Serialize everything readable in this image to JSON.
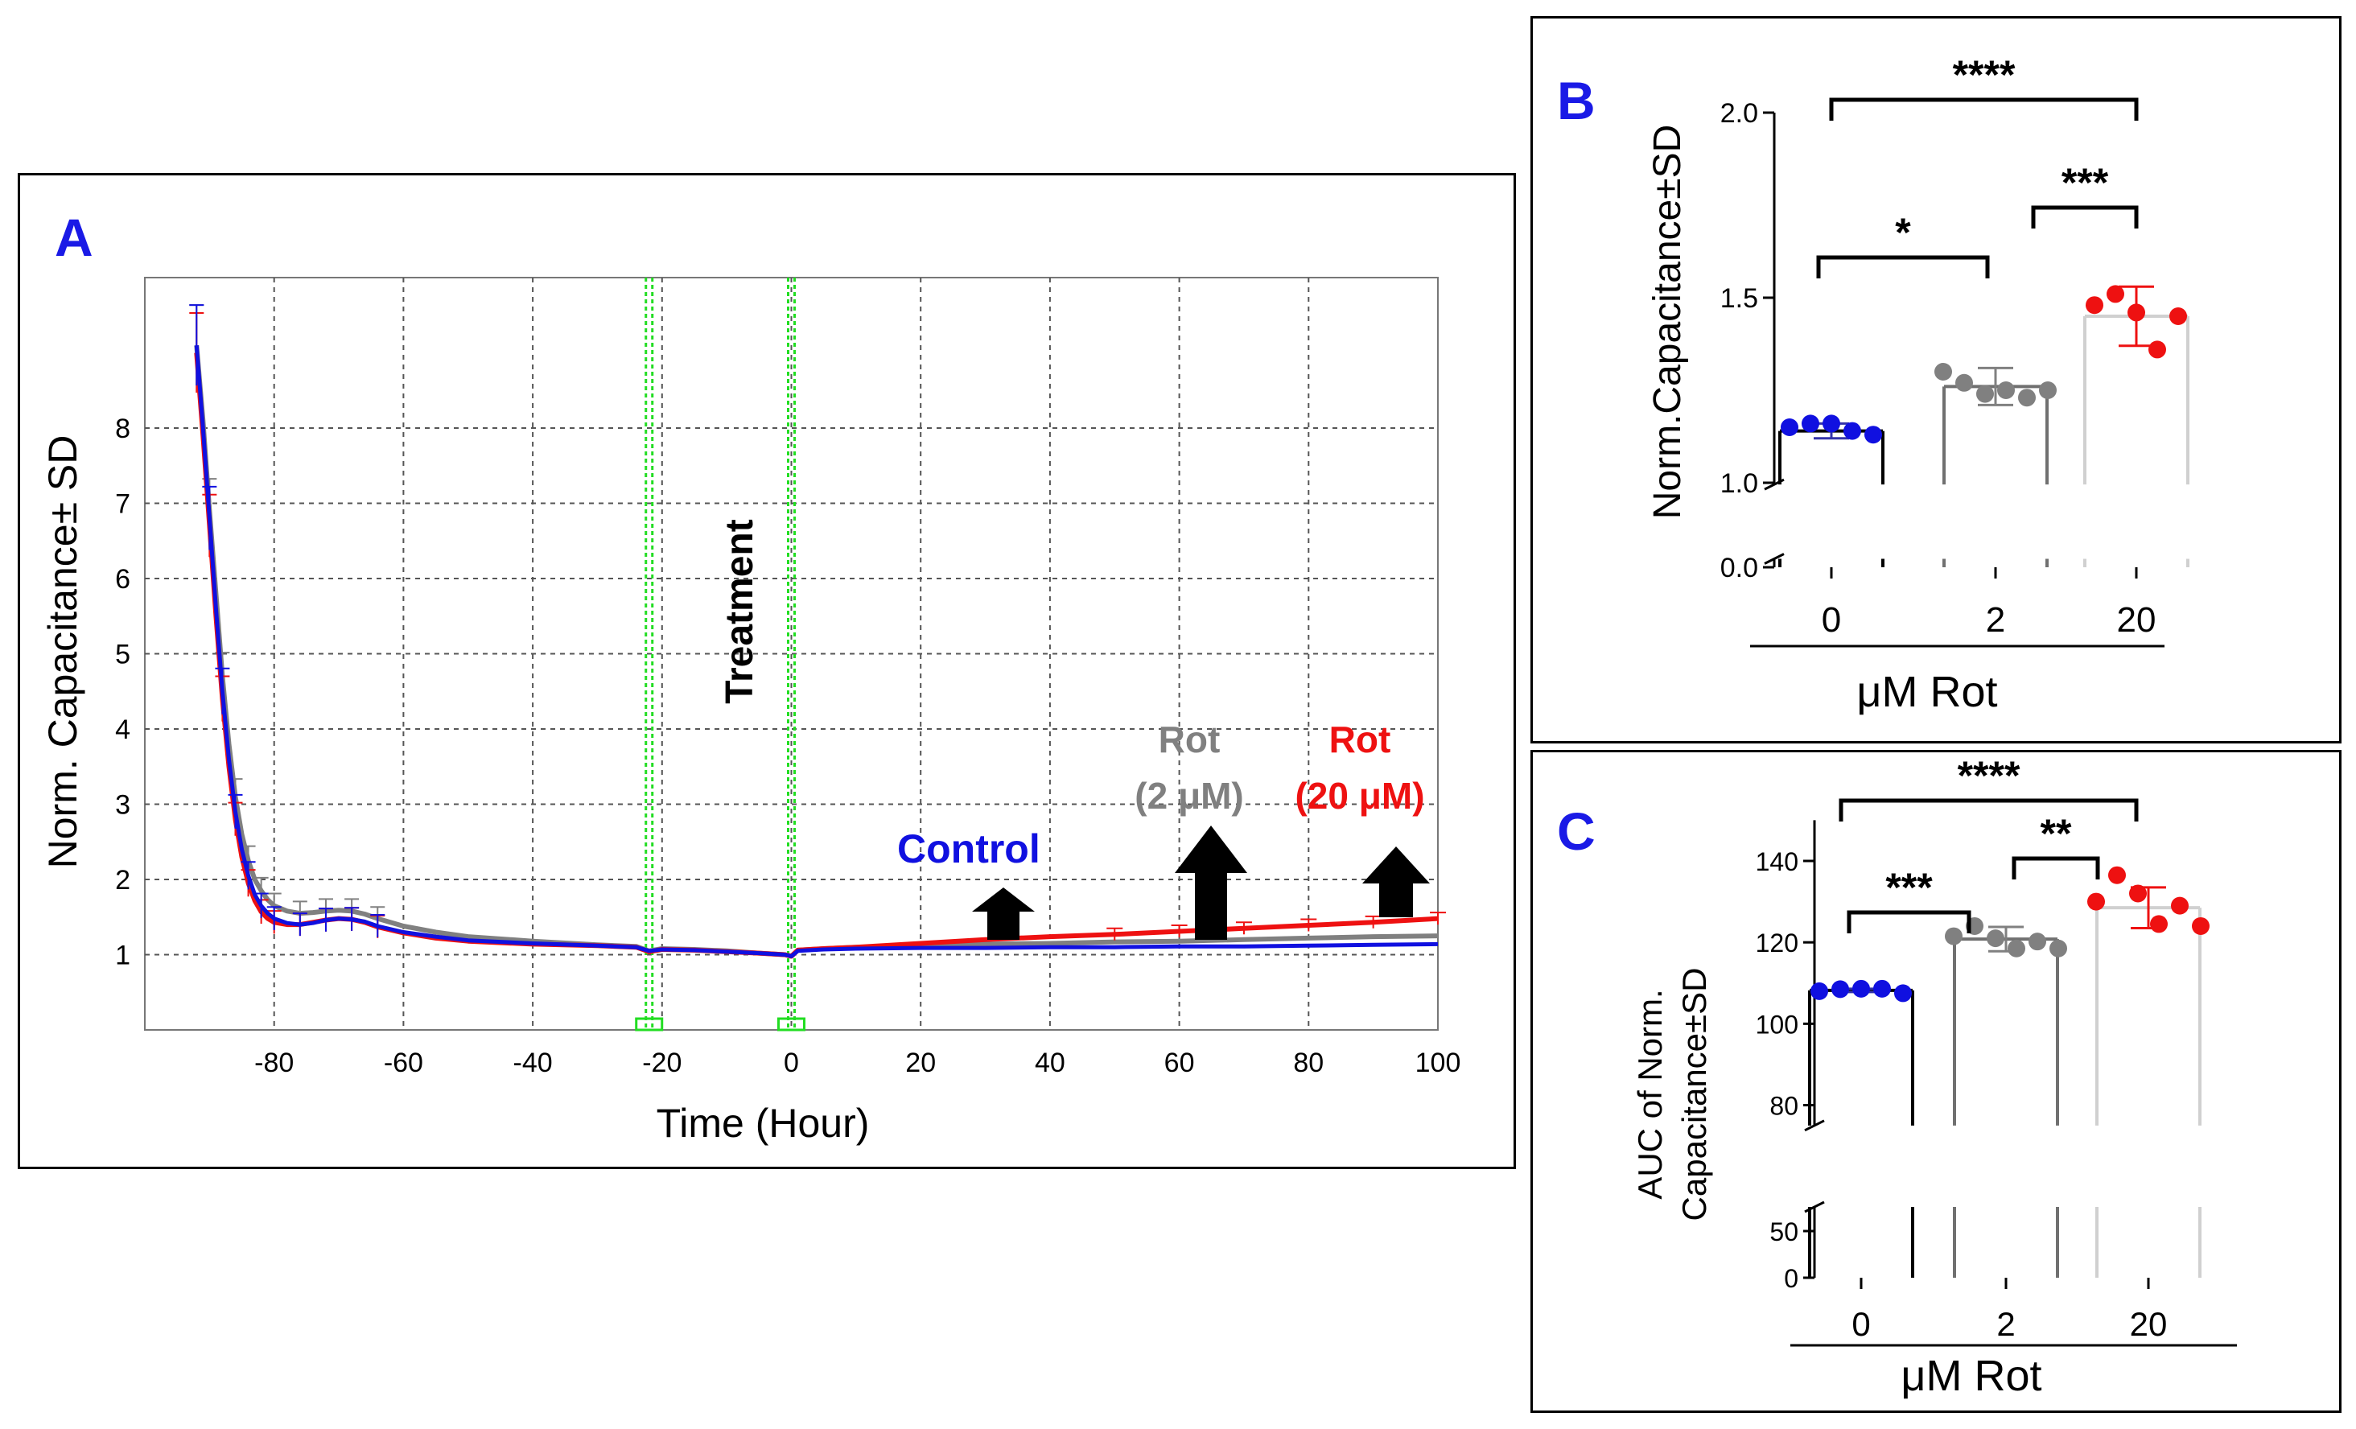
{
  "colors": {
    "control": "#1010e0",
    "rot2": "#808080",
    "rot20": "#ee1111",
    "green": "#22dd22",
    "panel_letter": "#1a1ae6",
    "bar_edge_2": "#707070",
    "bar_edge_20": "#d0d0d0"
  },
  "panel_a": {
    "letter": "A",
    "treatment_label": "Treatment",
    "annotations": {
      "control": "Control",
      "rot2_line1": "Rot",
      "rot2_line2": "(2 μM)",
      "rot20_line1": "Rot",
      "rot20_line2": "(20 μM)"
    },
    "chart_data": {
      "type": "line",
      "title": "",
      "xlabel": "Time (Hour)",
      "ylabel": "Norm. Capacitance± SD",
      "xlim": [
        -100,
        100
      ],
      "ylim": [
        0,
        10
      ],
      "xticks": [
        -80,
        -60,
        -40,
        -20,
        0,
        20,
        40,
        60,
        80,
        100
      ],
      "yticks": [
        1,
        2,
        3,
        4,
        5,
        6,
        7,
        8
      ],
      "grid": true,
      "treatment_markers_x": [
        -22,
        0
      ],
      "series": [
        {
          "name": "Control",
          "color": "#1010e0",
          "x": [
            -92,
            -91,
            -90,
            -89,
            -88,
            -87,
            -86,
            -85,
            -84,
            -83,
            -82,
            -81,
            -80,
            -78,
            -76,
            -74,
            -72,
            -70,
            -68,
            -66,
            -64,
            -60,
            -55,
            -50,
            -40,
            -30,
            -24,
            -22,
            -20,
            -15,
            -10,
            -5,
            -1,
            0,
            1,
            5,
            10,
            20,
            30,
            40,
            50,
            60,
            70,
            80,
            90,
            100
          ],
          "y": [
            9.1,
            8.0,
            6.8,
            5.6,
            4.5,
            3.6,
            2.9,
            2.4,
            2.05,
            1.8,
            1.65,
            1.55,
            1.48,
            1.42,
            1.4,
            1.42,
            1.46,
            1.48,
            1.47,
            1.44,
            1.38,
            1.3,
            1.24,
            1.19,
            1.15,
            1.12,
            1.1,
            1.05,
            1.07,
            1.06,
            1.04,
            1.02,
            1.0,
            0.98,
            1.05,
            1.07,
            1.08,
            1.09,
            1.09,
            1.1,
            1.1,
            1.11,
            1.11,
            1.12,
            1.13,
            1.14
          ]
        },
        {
          "name": "Rot (2 μM)",
          "color": "#808080",
          "x": [
            -92,
            -91,
            -90,
            -89,
            -88,
            -87,
            -86,
            -85,
            -84,
            -83,
            -82,
            -81,
            -80,
            -78,
            -76,
            -74,
            -72,
            -70,
            -68,
            -66,
            -64,
            -60,
            -55,
            -50,
            -40,
            -30,
            -24,
            -22,
            -20,
            -15,
            -10,
            -5,
            -1,
            0,
            1,
            5,
            10,
            20,
            30,
            40,
            50,
            60,
            70,
            80,
            90,
            100
          ],
          "y": [
            9.1,
            8.1,
            6.9,
            5.8,
            4.7,
            3.8,
            3.1,
            2.6,
            2.25,
            2.0,
            1.85,
            1.73,
            1.65,
            1.58,
            1.55,
            1.56,
            1.58,
            1.59,
            1.58,
            1.54,
            1.48,
            1.38,
            1.3,
            1.24,
            1.18,
            1.13,
            1.11,
            1.05,
            1.08,
            1.07,
            1.05,
            1.02,
            1.0,
            0.98,
            1.06,
            1.08,
            1.1,
            1.12,
            1.14,
            1.15,
            1.17,
            1.18,
            1.2,
            1.22,
            1.24,
            1.25
          ]
        },
        {
          "name": "Rot (20 μM)",
          "color": "#ee1111",
          "x": [
            -92,
            -91,
            -90,
            -89,
            -88,
            -87,
            -86,
            -85,
            -84,
            -83,
            -82,
            -81,
            -80,
            -78,
            -76,
            -74,
            -72,
            -70,
            -68,
            -66,
            -64,
            -60,
            -55,
            -50,
            -40,
            -30,
            -24,
            -22,
            -20,
            -15,
            -10,
            -5,
            -1,
            0,
            1,
            5,
            10,
            20,
            30,
            40,
            50,
            60,
            70,
            80,
            90,
            100
          ],
          "y": [
            9.0,
            7.9,
            6.7,
            5.5,
            4.4,
            3.5,
            2.8,
            2.3,
            1.95,
            1.72,
            1.57,
            1.48,
            1.43,
            1.4,
            1.4,
            1.43,
            1.46,
            1.48,
            1.47,
            1.43,
            1.37,
            1.29,
            1.22,
            1.18,
            1.14,
            1.12,
            1.1,
            1.04,
            1.07,
            1.06,
            1.04,
            1.02,
            1.0,
            0.98,
            1.06,
            1.08,
            1.1,
            1.15,
            1.2,
            1.24,
            1.27,
            1.31,
            1.35,
            1.39,
            1.43,
            1.48
          ]
        }
      ]
    }
  },
  "panel_b": {
    "letter": "B",
    "chart_data": {
      "type": "bar",
      "xlabel": "μM Rot",
      "ylabel": "Norm.Capacitance±SD",
      "categories": [
        "0",
        "2",
        "20"
      ],
      "values": [
        1.14,
        1.26,
        1.45
      ],
      "sd": [
        0.02,
        0.05,
        0.08
      ],
      "points": [
        [
          1.15,
          1.16,
          1.16,
          1.14,
          1.13
        ],
        [
          1.3,
          1.27,
          1.24,
          1.25,
          1.23,
          1.25
        ],
        [
          1.48,
          1.51,
          1.46,
          1.36,
          1.45
        ]
      ],
      "yticks": [
        0.0,
        1.0,
        1.5,
        2.0
      ],
      "ytick_labels": [
        "0.0",
        "1.0",
        "1.5",
        "2.0"
      ],
      "axis_break": [
        0.1,
        0.98
      ],
      "ylim": [
        0,
        2.0
      ],
      "significance": [
        {
          "from": "0",
          "to": "2",
          "label": "*"
        },
        {
          "from": "2",
          "to": "20",
          "label": "***"
        },
        {
          "from": "0",
          "to": "20",
          "label": "****"
        }
      ]
    }
  },
  "panel_c": {
    "letter": "C",
    "chart_data": {
      "type": "bar",
      "xlabel": "μM Rot",
      "ylabel_line1": "AUC of Norm.",
      "ylabel_line2": "Capacitance±SD",
      "categories": [
        "0",
        "2",
        "20"
      ],
      "values": [
        108.2,
        120.8,
        128.5
      ],
      "sd": [
        0.4,
        3.0,
        5.0
      ],
      "points": [
        [
          108.0,
          108.5,
          108.6,
          108.6,
          107.5
        ],
        [
          121.5,
          124.0,
          121.0,
          118.5,
          120.2,
          118.5
        ],
        [
          130.0,
          136.5,
          132.0,
          124.5,
          129.0,
          124.0
        ]
      ],
      "yticks": [
        0,
        50,
        80,
        100,
        120,
        140
      ],
      "ytick_labels": [
        "0",
        "50",
        "80",
        "100",
        "120",
        "140"
      ],
      "axis_break": [
        55,
        75
      ],
      "ylim": [
        0,
        150
      ],
      "significance": [
        {
          "from": "0",
          "to": "2",
          "label": "***"
        },
        {
          "from": "2",
          "to": "20",
          "label": "**"
        },
        {
          "from": "0",
          "to": "20",
          "label": "****"
        }
      ]
    }
  }
}
